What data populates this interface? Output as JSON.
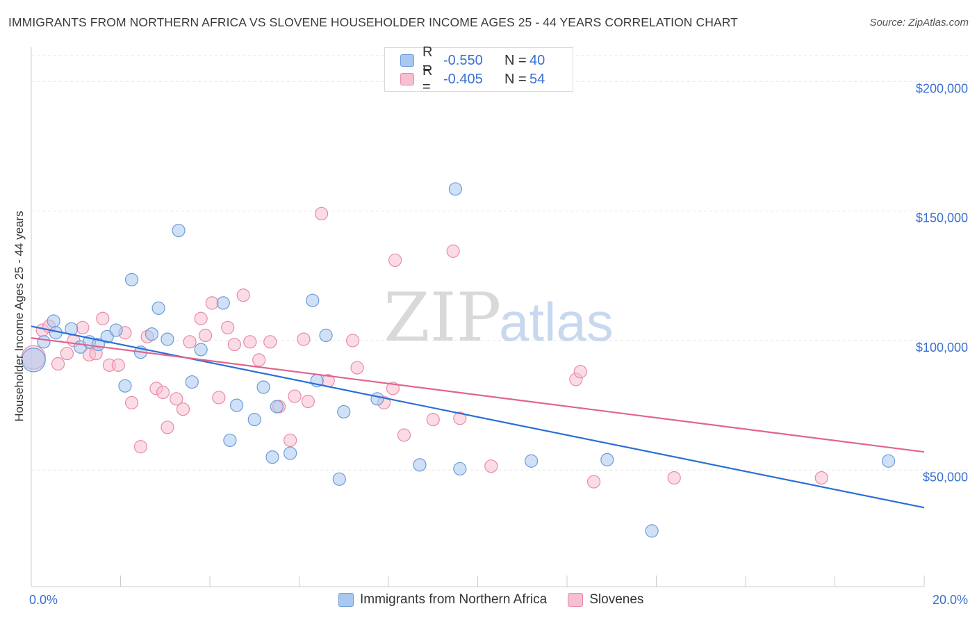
{
  "title": "IMMIGRANTS FROM NORTHERN AFRICA VS SLOVENE HOUSEHOLDER INCOME AGES 25 - 44 YEARS CORRELATION CHART",
  "source": "Source: ZipAtlas.com",
  "watermark": {
    "zip": "ZIP",
    "atlas": "atlas"
  },
  "legend": {
    "rows": [
      {
        "r_label": "R =",
        "r_value": "-0.550",
        "n_label": "N =",
        "n_value": "40",
        "color": "#a9c8f0",
        "border": "#6b9bd8"
      },
      {
        "r_label": "R =",
        "r_value": "-0.405",
        "n_label": "N =",
        "n_value": "54",
        "color": "#f7bfd0",
        "border": "#e88aa8"
      }
    ]
  },
  "bottom_legend": [
    {
      "label": "Immigrants from Northern Africa",
      "color": "#a9c8f0",
      "border": "#6b9bd8"
    },
    {
      "label": "Slovenes",
      "color": "#f7bfd0",
      "border": "#e88aa8"
    }
  ],
  "chart_data": {
    "type": "scatter",
    "title": "IMMIGRANTS FROM NORTHERN AFRICA VS SLOVENE HOUSEHOLDER INCOME AGES 25 - 44 YEARS CORRELATION CHART",
    "xlabel": "",
    "ylabel": "Householder Income Ages 25 - 44 years",
    "xlim": [
      0,
      20
    ],
    "ylim": [
      5000,
      210000
    ],
    "x_tick_labels": [
      "0.0%",
      "20.0%"
    ],
    "y_ticks": [
      50000,
      100000,
      150000,
      200000
    ],
    "y_tick_labels": [
      "$50,000",
      "$100,000",
      "$150,000",
      "$200,000"
    ],
    "grid": true,
    "series": [
      {
        "name": "Immigrants from Northern Africa",
        "color": "#a9c8f0",
        "stroke": "#6b9bd8",
        "line_color": "#2a6fd6",
        "trend": {
          "x": [
            0,
            20
          ],
          "y": [
            105500,
            35500
          ]
        },
        "points": [
          {
            "x": 0.05,
            "y": 92500,
            "big": true
          },
          {
            "x": 0.28,
            "y": 99500
          },
          {
            "x": 0.5,
            "y": 107500
          },
          {
            "x": 0.55,
            "y": 103000
          },
          {
            "x": 0.9,
            "y": 104500
          },
          {
            "x": 1.1,
            "y": 97500
          },
          {
            "x": 1.3,
            "y": 99500
          },
          {
            "x": 1.5,
            "y": 98500
          },
          {
            "x": 1.7,
            "y": 101500
          },
          {
            "x": 1.9,
            "y": 104000
          },
          {
            "x": 2.1,
            "y": 82500
          },
          {
            "x": 2.25,
            "y": 123500
          },
          {
            "x": 2.45,
            "y": 95500
          },
          {
            "x": 2.7,
            "y": 102500
          },
          {
            "x": 2.85,
            "y": 112500
          },
          {
            "x": 3.05,
            "y": 100500
          },
          {
            "x": 3.3,
            "y": 142500
          },
          {
            "x": 3.6,
            "y": 84000
          },
          {
            "x": 3.8,
            "y": 96500
          },
          {
            "x": 4.3,
            "y": 114500
          },
          {
            "x": 4.45,
            "y": 61500
          },
          {
            "x": 4.6,
            "y": 75000
          },
          {
            "x": 5.0,
            "y": 69500
          },
          {
            "x": 5.2,
            "y": 82000
          },
          {
            "x": 5.4,
            "y": 55000
          },
          {
            "x": 5.5,
            "y": 74500
          },
          {
            "x": 5.8,
            "y": 56500
          },
          {
            "x": 6.3,
            "y": 115500
          },
          {
            "x": 6.4,
            "y": 84500
          },
          {
            "x": 6.6,
            "y": 102000
          },
          {
            "x": 6.9,
            "y": 46500
          },
          {
            "x": 7.0,
            "y": 72500
          },
          {
            "x": 7.75,
            "y": 77500
          },
          {
            "x": 8.7,
            "y": 52000
          },
          {
            "x": 9.5,
            "y": 158500
          },
          {
            "x": 9.6,
            "y": 50500
          },
          {
            "x": 11.2,
            "y": 53500
          },
          {
            "x": 12.9,
            "y": 54000
          },
          {
            "x": 13.9,
            "y": 26500
          },
          {
            "x": 19.2,
            "y": 53500
          }
        ]
      },
      {
        "name": "Slovenes",
        "color": "#f7bfd0",
        "stroke": "#e88aa8",
        "line_color": "#e0648f",
        "trend": {
          "x": [
            0,
            20
          ],
          "y": [
            101000,
            57000
          ]
        },
        "points": [
          {
            "x": 0.05,
            "y": 93500,
            "big": true
          },
          {
            "x": 0.25,
            "y": 104000
          },
          {
            "x": 0.4,
            "y": 105500
          },
          {
            "x": 0.6,
            "y": 91000
          },
          {
            "x": 0.8,
            "y": 95000
          },
          {
            "x": 0.95,
            "y": 100000
          },
          {
            "x": 1.15,
            "y": 105000
          },
          {
            "x": 1.3,
            "y": 94500
          },
          {
            "x": 1.45,
            "y": 95000
          },
          {
            "x": 1.6,
            "y": 108500
          },
          {
            "x": 1.75,
            "y": 90500
          },
          {
            "x": 1.95,
            "y": 90500
          },
          {
            "x": 2.1,
            "y": 103000
          },
          {
            "x": 2.25,
            "y": 76000
          },
          {
            "x": 2.45,
            "y": 59000
          },
          {
            "x": 2.6,
            "y": 101500
          },
          {
            "x": 2.8,
            "y": 81500
          },
          {
            "x": 2.95,
            "y": 80000
          },
          {
            "x": 3.05,
            "y": 66500
          },
          {
            "x": 3.25,
            "y": 77500
          },
          {
            "x": 3.4,
            "y": 73500
          },
          {
            "x": 3.55,
            "y": 99500
          },
          {
            "x": 3.8,
            "y": 108500
          },
          {
            "x": 3.9,
            "y": 102000
          },
          {
            "x": 4.05,
            "y": 114500
          },
          {
            "x": 4.2,
            "y": 78000
          },
          {
            "x": 4.4,
            "y": 105000
          },
          {
            "x": 4.55,
            "y": 98500
          },
          {
            "x": 4.75,
            "y": 117500
          },
          {
            "x": 4.9,
            "y": 99500
          },
          {
            "x": 5.1,
            "y": 92500
          },
          {
            "x": 5.35,
            "y": 99500
          },
          {
            "x": 5.55,
            "y": 74500
          },
          {
            "x": 5.8,
            "y": 61500
          },
          {
            "x": 5.9,
            "y": 78500
          },
          {
            "x": 6.1,
            "y": 100500
          },
          {
            "x": 6.2,
            "y": 76500
          },
          {
            "x": 6.5,
            "y": 149000
          },
          {
            "x": 6.65,
            "y": 84500
          },
          {
            "x": 7.2,
            "y": 100000
          },
          {
            "x": 7.3,
            "y": 89500
          },
          {
            "x": 7.9,
            "y": 76000
          },
          {
            "x": 8.1,
            "y": 81500
          },
          {
            "x": 8.15,
            "y": 131000
          },
          {
            "x": 8.35,
            "y": 63500
          },
          {
            "x": 9.0,
            "y": 69500
          },
          {
            "x": 9.45,
            "y": 134500
          },
          {
            "x": 9.6,
            "y": 70000
          },
          {
            "x": 10.3,
            "y": 51500
          },
          {
            "x": 12.2,
            "y": 85000
          },
          {
            "x": 12.3,
            "y": 88000
          },
          {
            "x": 12.6,
            "y": 45500
          },
          {
            "x": 14.4,
            "y": 47000
          },
          {
            "x": 17.7,
            "y": 47000
          }
        ]
      }
    ]
  }
}
